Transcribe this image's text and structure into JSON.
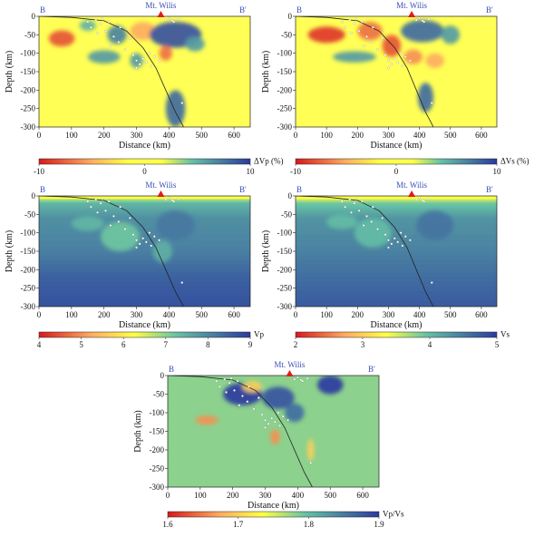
{
  "figure": {
    "shared": {
      "volcano": "Mt. Wilis",
      "profile_start": "B",
      "profile_end": "B'",
      "xlabel": "Distance (km)",
      "ylabel": "Depth (km)",
      "xticks": [
        0,
        100,
        200,
        300,
        400,
        500,
        600
      ],
      "yticks": [
        0,
        -50,
        -100,
        -150,
        -200,
        -250,
        -300
      ],
      "xlim": [
        0,
        650
      ],
      "ylim": [
        -300,
        0
      ],
      "volcano_x": 375,
      "slab_path": [
        [
          0,
          0
        ],
        [
          100,
          -3
        ],
        [
          200,
          -12
        ],
        [
          270,
          -40
        ],
        [
          320,
          -85
        ],
        [
          360,
          -140
        ],
        [
          390,
          -200
        ],
        [
          420,
          -260
        ],
        [
          445,
          -300
        ]
      ]
    },
    "colors": {
      "profile_label": "#3a4fb5",
      "volcano_marker": "#e01b1b",
      "seismicity": "#ffffff",
      "slab_line": "#222222"
    },
    "panels": [
      {
        "id": "dvp",
        "colorbar": {
          "label": "ΔVp (%)",
          "min": -10,
          "max": 10,
          "ticks": [
            -10,
            0,
            10
          ],
          "palette": "diverging"
        },
        "blobs": [
          [
            70,
            -60,
            40,
            22,
            -8
          ],
          [
            150,
            -25,
            25,
            14,
            5
          ],
          [
            240,
            -50,
            30,
            25,
            7
          ],
          [
            320,
            -40,
            40,
            25,
            -5
          ],
          [
            420,
            -50,
            80,
            35,
            9
          ],
          [
            390,
            -100,
            20,
            20,
            -7
          ],
          [
            200,
            -110,
            50,
            18,
            6
          ],
          [
            420,
            -250,
            30,
            50,
            8
          ],
          [
            480,
            -75,
            30,
            20,
            6
          ],
          [
            300,
            -120,
            20,
            20,
            6
          ]
        ]
      },
      {
        "id": "dvs",
        "colorbar": {
          "label": "ΔVs (%)",
          "min": -10,
          "max": 10,
          "ticks": [
            -10,
            0,
            10
          ],
          "palette": "diverging"
        },
        "blobs": [
          [
            100,
            -50,
            60,
            22,
            -9
          ],
          [
            240,
            -40,
            40,
            25,
            -7
          ],
          [
            310,
            -80,
            30,
            30,
            -8
          ],
          [
            410,
            -40,
            70,
            30,
            8
          ],
          [
            500,
            -50,
            30,
            25,
            6
          ],
          [
            420,
            -220,
            25,
            40,
            8
          ],
          [
            190,
            -110,
            70,
            15,
            6
          ],
          [
            380,
            -110,
            30,
            20,
            -6
          ],
          [
            450,
            -120,
            30,
            20,
            -5
          ]
        ]
      },
      {
        "id": "vp",
        "colorbar": {
          "label": "Vp",
          "min": 4,
          "max": 9,
          "ticks": [
            4,
            5,
            6,
            7,
            8,
            9
          ],
          "palette": "velocity"
        },
        "blobs": [
          [
            250,
            -110,
            60,
            40,
            -0.6
          ],
          [
            420,
            -80,
            60,
            40,
            0.4
          ],
          [
            150,
            -75,
            50,
            20,
            -0.4
          ],
          [
            380,
            -150,
            30,
            30,
            -0.3
          ]
        ]
      },
      {
        "id": "vs",
        "colorbar": {
          "label": "Vs",
          "min": 2,
          "max": 5,
          "ticks": [
            2,
            3,
            4,
            5
          ],
          "palette": "velocity"
        },
        "blobs": [
          [
            250,
            -100,
            60,
            40,
            -0.3
          ],
          [
            450,
            -80,
            60,
            40,
            0.25
          ],
          [
            150,
            -70,
            50,
            20,
            -0.3
          ]
        ]
      },
      {
        "id": "vpvs",
        "colorbar": {
          "label": "Vp/Vs",
          "min": 1.6,
          "max": 1.9,
          "ticks": [
            1.6,
            1.7,
            1.8,
            1.9
          ],
          "palette": "velocity"
        },
        "blobs": [
          [
            230,
            -50,
            60,
            30,
            0.12
          ],
          [
            340,
            -60,
            50,
            30,
            0.1
          ],
          [
            500,
            -25,
            40,
            25,
            0.12
          ],
          [
            120,
            -120,
            35,
            12,
            -0.12
          ],
          [
            330,
            -165,
            15,
            20,
            -0.12
          ],
          [
            390,
            -100,
            30,
            25,
            0.08
          ],
          [
            260,
            -30,
            30,
            15,
            -0.08
          ],
          [
            440,
            -200,
            10,
            30,
            -0.08
          ]
        ]
      }
    ]
  }
}
